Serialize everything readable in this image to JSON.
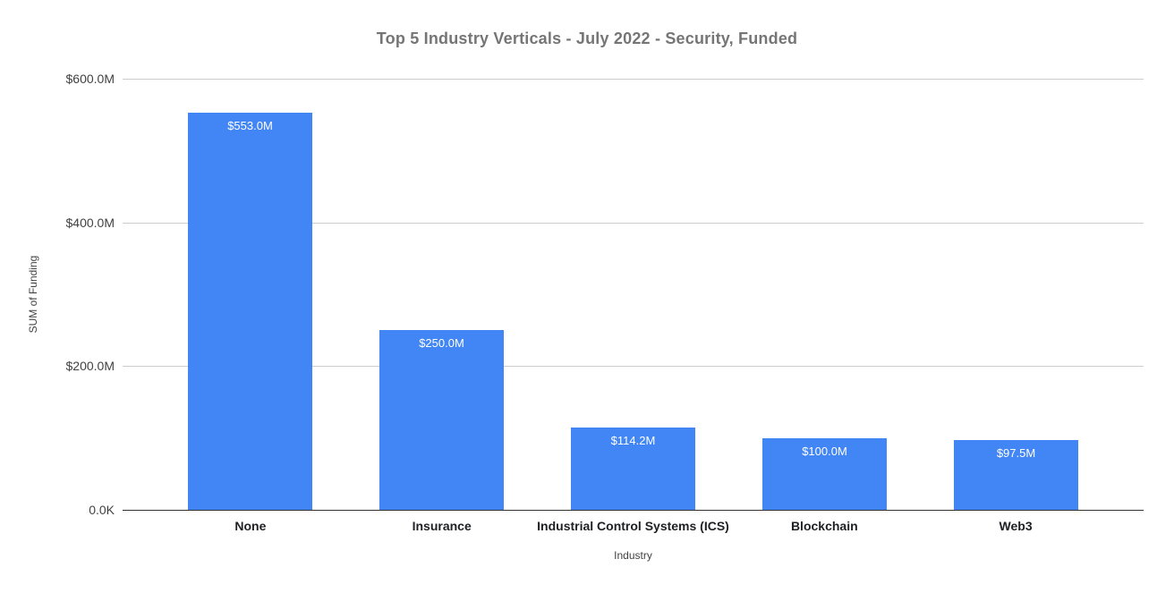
{
  "chart_data": {
    "type": "bar",
    "title": "Top 5 Industry Verticals - July 2022 - Security, Funded",
    "xlabel": "Industry",
    "ylabel": "SUM of Funding",
    "categories": [
      "None",
      "Insurance",
      "Industrial Control Systems (ICS)",
      "Blockchain",
      "Web3"
    ],
    "values": [
      553.0,
      250.0,
      114.2,
      100.0,
      97.5
    ],
    "bar_labels": [
      "$553.0M",
      "$250.0M",
      "$114.2M",
      "$100.0M",
      "$97.5M"
    ],
    "ylim": [
      0,
      600
    ],
    "yticks": [
      {
        "value": 600,
        "label": "$600.0M"
      },
      {
        "value": 400,
        "label": "$400.0M"
      },
      {
        "value": 200,
        "label": "$200.0M"
      },
      {
        "value": 0,
        "label": "0.0K"
      }
    ],
    "grid": true,
    "legend_position": "none",
    "bar_color": "#4285f4",
    "colors": {
      "background": "#ffffff",
      "title": "#757575",
      "gridline": "#cccccc",
      "axis_line": "#333333",
      "tick_label": "#424242",
      "category_label": "#202124",
      "bar_value_label": "#ffffff"
    }
  }
}
